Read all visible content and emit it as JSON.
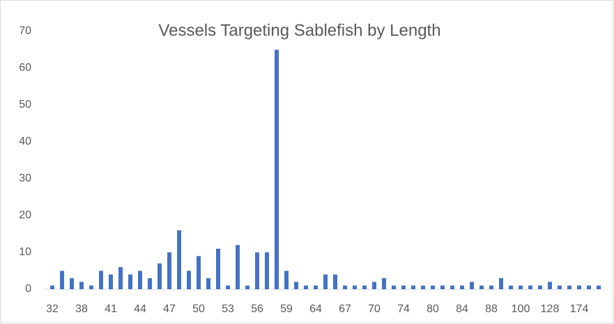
{
  "chart_data": {
    "type": "bar",
    "title": "Vessels Targeting Sablefish by Length",
    "categories": [
      "32",
      null,
      null,
      "38",
      null,
      null,
      "41",
      null,
      null,
      "44",
      null,
      null,
      "47",
      null,
      null,
      "50",
      null,
      null,
      "53",
      null,
      null,
      "56",
      null,
      null,
      "59",
      null,
      null,
      "64",
      null,
      null,
      "67",
      null,
      null,
      "70",
      null,
      null,
      "74",
      null,
      null,
      "80",
      null,
      null,
      "84",
      null,
      null,
      "88",
      null,
      null,
      "100",
      null,
      null,
      "128",
      null,
      null,
      "174",
      null,
      null
    ],
    "values": [
      1,
      5,
      3,
      2,
      1,
      5,
      4,
      6,
      4,
      5,
      3,
      7,
      10,
      16,
      5,
      9,
      3,
      11,
      1,
      12,
      1,
      10,
      10,
      65,
      5,
      2,
      1,
      1,
      4,
      4,
      1,
      1,
      1,
      2,
      3,
      1,
      1,
      1,
      1,
      1,
      1,
      1,
      1,
      2,
      1,
      1,
      3,
      1,
      1,
      1,
      1,
      2,
      1,
      1,
      1,
      1,
      1
    ],
    "color": "#4472c4",
    "ylim": [
      0,
      70
    ],
    "yticks": [
      0,
      10,
      20,
      30,
      40,
      50,
      60,
      70
    ],
    "grid": false
  }
}
